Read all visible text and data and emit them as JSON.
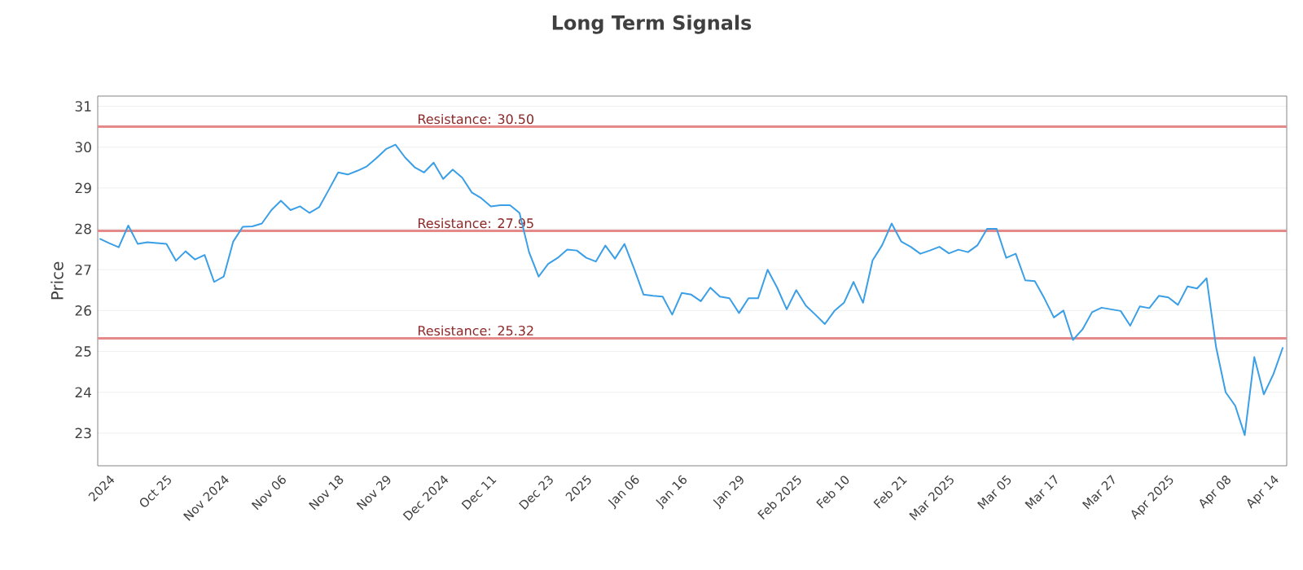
{
  "chart_data": {
    "type": "line",
    "title": "Long Term Signals",
    "ylabel": "Price",
    "categories": [
      null,
      "2024",
      null,
      null,
      null,
      null,
      null,
      "Oct 25",
      null,
      null,
      null,
      null,
      null,
      "Nov 2024",
      null,
      null,
      null,
      null,
      null,
      "Nov 06",
      null,
      null,
      null,
      null,
      null,
      "Nov 18",
      null,
      null,
      null,
      null,
      "Nov 29",
      null,
      null,
      null,
      null,
      null,
      "Dec 2024",
      null,
      null,
      null,
      null,
      "Dec 11",
      null,
      null,
      null,
      null,
      null,
      "Dec 23",
      null,
      null,
      null,
      "2025",
      null,
      null,
      null,
      null,
      "Jan 06",
      null,
      null,
      null,
      null,
      "Jan 16",
      null,
      null,
      null,
      null,
      null,
      "Jan 29",
      null,
      null,
      null,
      null,
      null,
      "Feb 2025",
      null,
      null,
      null,
      null,
      "Feb 10",
      null,
      null,
      null,
      null,
      null,
      "Feb 21",
      null,
      null,
      null,
      null,
      "Mar 2025",
      null,
      null,
      null,
      null,
      null,
      "Mar 05",
      null,
      null,
      null,
      null,
      "Mar 17",
      null,
      null,
      null,
      null,
      null,
      "Mar 27",
      null,
      null,
      null,
      null,
      null,
      "Apr 2025",
      null,
      null,
      null,
      null,
      null,
      "Apr 08",
      null,
      null,
      null,
      null,
      "Apr 14",
      null
    ],
    "series": [
      {
        "color": "#3a9fe6",
        "values": [
          27.76,
          27.65,
          27.55,
          28.08,
          27.63,
          27.67,
          27.65,
          27.63,
          27.22,
          27.45,
          27.25,
          27.36,
          26.7,
          26.83,
          27.69,
          28.05,
          28.06,
          28.13,
          28.46,
          28.69,
          28.46,
          28.55,
          28.39,
          28.53,
          28.95,
          29.38,
          29.33,
          29.42,
          29.53,
          29.73,
          29.95,
          30.06,
          29.75,
          29.51,
          29.38,
          29.62,
          29.22,
          29.45,
          29.25,
          28.89,
          28.75,
          28.55,
          28.58,
          28.58,
          28.39,
          27.43,
          26.83,
          27.14,
          27.29,
          27.49,
          27.47,
          27.29,
          27.2,
          27.59,
          27.27,
          27.63,
          27.03,
          26.39,
          26.36,
          26.34,
          25.9,
          26.43,
          26.39,
          26.23,
          26.56,
          26.34,
          26.3,
          25.94,
          26.3,
          26.3,
          27.0,
          26.56,
          26.03,
          26.5,
          26.12,
          25.9,
          25.67,
          25.99,
          26.19,
          26.7,
          26.19,
          27.23,
          27.6,
          28.13,
          27.69,
          27.56,
          27.39,
          27.47,
          27.56,
          27.4,
          27.49,
          27.43,
          27.6,
          28.0,
          28.0,
          27.29,
          27.39,
          26.74,
          26.72,
          26.3,
          25.83,
          26.0,
          25.28,
          25.54,
          25.96,
          26.07,
          26.03,
          25.99,
          25.63,
          26.1,
          26.06,
          26.36,
          26.32,
          26.14,
          26.59,
          26.54,
          26.79,
          25.1,
          24.0,
          23.67,
          22.95,
          24.86,
          23.95,
          24.44,
          25.1
        ]
      }
    ],
    "ylim": [
      22.2,
      31.25
    ],
    "yticks": [
      23,
      24,
      25,
      26,
      27,
      28,
      29,
      30,
      31
    ],
    "grid": "y",
    "ref_lines": [
      {
        "axis": "y",
        "value": 30.5,
        "label": "Resistance: 30.50",
        "color": "#e58a8a"
      },
      {
        "axis": "y",
        "value": 27.95,
        "label": "Resistance: 27.95",
        "color": "#e58a8a"
      },
      {
        "axis": "y",
        "value": 25.32,
        "label": "Resistance: 25.32",
        "color": "#e58a8a"
      }
    ]
  }
}
